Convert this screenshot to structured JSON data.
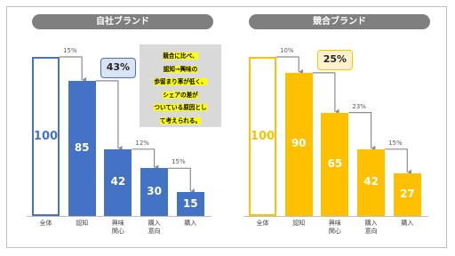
{
  "chart_data": [
    {
      "type": "bar",
      "title": "自社ブランド",
      "color": "#4472c4",
      "callout_fill": "#dae3f3",
      "first_bar_outline": true,
      "categories": [
        "全体",
        "認知",
        "興味\n関心",
        "購入\n意向",
        "購入"
      ],
      "values": [
        100,
        85,
        42,
        30,
        15
      ],
      "drop_labels": [
        "15%",
        "43%",
        "12%",
        "15%"
      ],
      "highlight": 1,
      "note": [
        "競合に比べ、",
        "認知→興味の",
        "歩留まり率が低く、",
        "シェアの差が",
        "ついている原因とし",
        "て考えられる。"
      ]
    },
    {
      "type": "bar",
      "title": "競合ブランド",
      "color": "#ffc000",
      "callout_fill": "#fff2cc",
      "first_bar_outline": true,
      "categories": [
        "全体",
        "認知",
        "興味\n関心",
        "購入\n意向",
        "購入"
      ],
      "values": [
        100,
        90,
        65,
        42,
        27
      ],
      "drop_labels": [
        "10%",
        "25%",
        "23%",
        "15%"
      ],
      "highlight": 1
    }
  ]
}
